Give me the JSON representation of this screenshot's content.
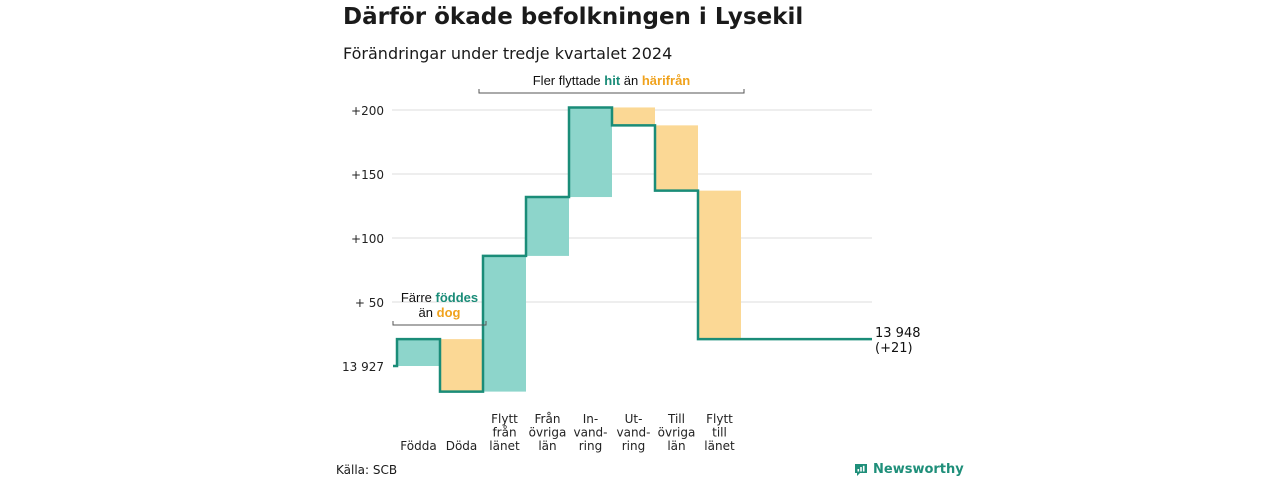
{
  "header": {
    "title": "Därför ökade befolkningen i Lysekil",
    "subtitle": "Förändringar under tredje kvartalet 2024"
  },
  "colors": {
    "increase": "#8dd5cb",
    "decrease": "#fbd895",
    "line": "#1a8c78",
    "text_highlight_teal": "#1a8c78",
    "text_highlight_orange": "#f0a21c",
    "grid": "#dddddd"
  },
  "chart_data": {
    "type": "waterfall",
    "title": "Därför ökade befolkningen i Lysekil",
    "subtitle": "Förändringar under tredje kvartalet 2024",
    "start": {
      "label": "13 927",
      "value": 13927
    },
    "end": {
      "label_line1": "13 948",
      "label_line2": "(+21)",
      "value": 13948,
      "change": 21
    },
    "steps": [
      {
        "lines": [
          "Födda"
        ],
        "change": 21
      },
      {
        "lines": [
          "Döda"
        ],
        "change": -41
      },
      {
        "lines": [
          "Flytt",
          "från",
          "länet"
        ],
        "change": 106
      },
      {
        "lines": [
          "Från",
          "övriga",
          "län"
        ],
        "change": 46
      },
      {
        "lines": [
          "In-",
          "vand-",
          "ring"
        ],
        "change": 70
      },
      {
        "lines": [
          "Ut-",
          "vand-",
          "ring"
        ],
        "change": -14
      },
      {
        "lines": [
          "Till",
          "övriga",
          "län"
        ],
        "change": -51
      },
      {
        "lines": [
          "Flytt",
          "till",
          "länet"
        ],
        "change": -116
      }
    ],
    "y_axis": {
      "unit": "change since start",
      "range": [
        -20,
        215
      ],
      "ticks": [
        {
          "value": 0,
          "label": "13 927"
        },
        {
          "value": 50,
          "label": "+ 50"
        },
        {
          "value": 100,
          "label": "+100"
        },
        {
          "value": 150,
          "label": "+150"
        },
        {
          "value": 200,
          "label": "+200"
        }
      ]
    },
    "annotations": [
      {
        "id": "natural",
        "from_step": 0,
        "to_step": 1,
        "parts": [
          [
            {
              "text": "Färre ",
              "style": "plain"
            },
            {
              "text": "föddes",
              "style": "teal"
            }
          ],
          [
            {
              "text": "än ",
              "style": "plain"
            },
            {
              "text": "dog",
              "style": "orange"
            }
          ]
        ]
      },
      {
        "id": "migration",
        "from_step": 2,
        "to_step": 7,
        "parts": [
          [
            {
              "text": "Fler flyttade ",
              "style": "plain"
            },
            {
              "text": "hit",
              "style": "teal"
            },
            {
              "text": "  än ",
              "style": "plain"
            },
            {
              "text": "härifrån",
              "style": "orange"
            }
          ]
        ]
      }
    ],
    "grid": true
  },
  "footer": {
    "source": "Källa: SCB",
    "brand": "Newsworthy"
  }
}
